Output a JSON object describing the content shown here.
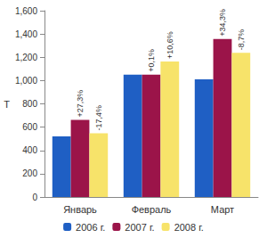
{
  "chart_data": {
    "type": "bar",
    "categories": [
      "Январь",
      "Февраль",
      "Март"
    ],
    "y_label": "Т",
    "series": [
      {
        "name": "2006 г.",
        "color": "#1f5fc4",
        "values": [
          520,
          1050,
          1010
        ]
      },
      {
        "name": "2007 г.",
        "color": "#9b1449",
        "values": [
          662,
          1051,
          1356
        ],
        "annotations": [
          "+27,3%",
          "+0,1%",
          "+34,3%"
        ]
      },
      {
        "name": "2008 г.",
        "color": "#f7e36a",
        "values": [
          547,
          1163,
          1238
        ],
        "annotations": [
          "-17,4%",
          "+10,6%",
          "-8,7%"
        ]
      }
    ],
    "ylim": [
      0,
      1600
    ],
    "yticks": [
      0,
      200,
      400,
      600,
      800,
      1000,
      1200,
      1400,
      1600
    ],
    "grid": false,
    "legend": "bottom"
  }
}
